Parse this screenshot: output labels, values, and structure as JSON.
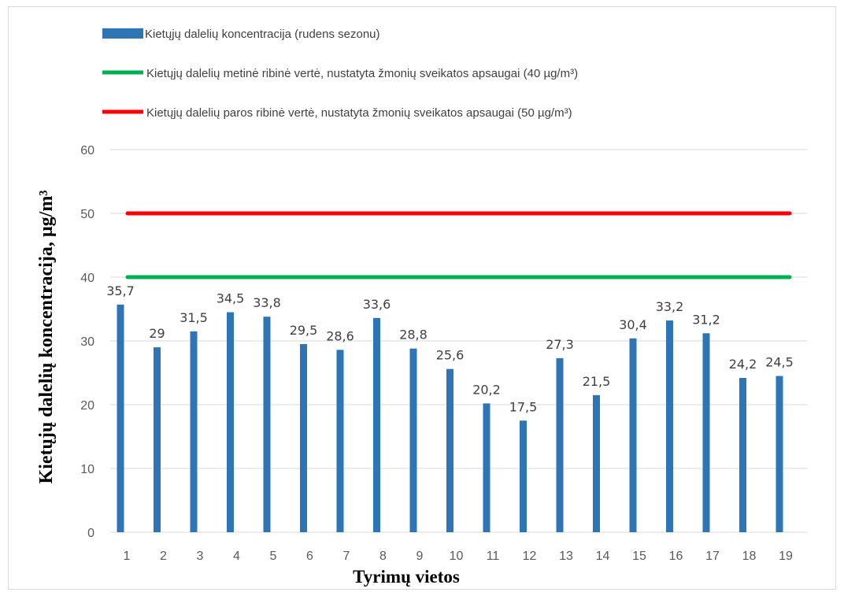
{
  "chart_data": {
    "type": "bar",
    "xlabel": "Tyrimų vietos",
    "ylabel": "Kietųjų dalelių koncentracija, µg/m³",
    "ylim": [
      0,
      60
    ],
    "yticks": [
      0,
      10,
      20,
      30,
      40,
      50,
      60
    ],
    "grid": true,
    "legend_position": "top",
    "categories": [
      "1",
      "2",
      "3",
      "4",
      "5",
      "6",
      "7",
      "8",
      "9",
      "10",
      "11",
      "12",
      "13",
      "14",
      "15",
      "16",
      "17",
      "18",
      "19"
    ],
    "series": [
      {
        "name": "Kietųjų dalelių koncentracija (rudens sezonu)",
        "type": "bar",
        "color": "#2e75b6",
        "values": [
          35.7,
          29,
          31.5,
          34.5,
          33.8,
          29.5,
          28.6,
          33.6,
          28.8,
          25.6,
          20.2,
          17.5,
          27.3,
          21.5,
          30.4,
          33.2,
          31.2,
          24.2,
          24.5
        ],
        "data_labels": [
          "35,7",
          "29",
          "31,5",
          "34,5",
          "33,8",
          "29,5",
          "28,6",
          "33,6",
          "28,8",
          "25,6",
          "20,2",
          "17,5",
          "27,3",
          "21,5",
          "30,4",
          "33,2",
          "31,2",
          "24,2",
          "24,5"
        ]
      },
      {
        "name": "Kietųjų dalelių metinė ribinė vertė, nustatyta žmonių sveikatos apsaugai (40 µg/m³)",
        "type": "line",
        "color": "#00b050",
        "value": 40
      },
      {
        "name": "Kietųjų dalelių paros ribinė vertė, nustatyta žmonių sveikatos apsaugai (50 µg/m³)",
        "type": "line",
        "color": "#ff0000",
        "value": 50
      }
    ]
  }
}
